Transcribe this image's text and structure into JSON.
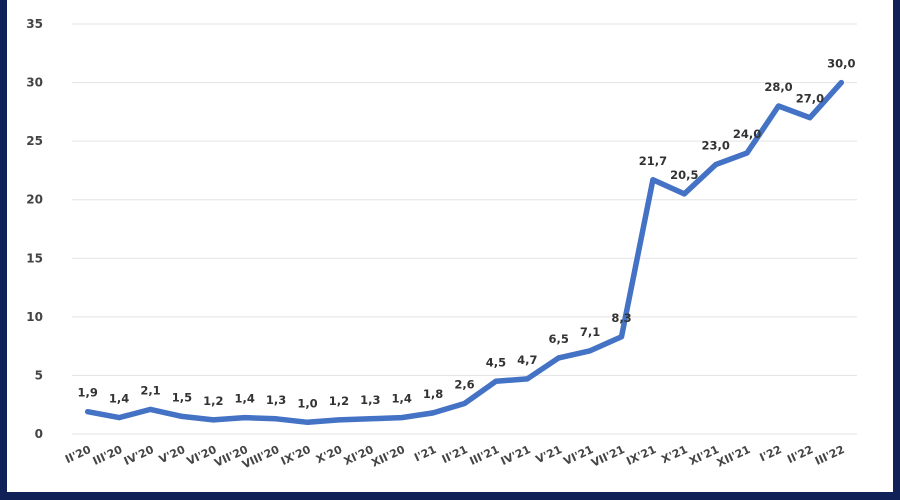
{
  "chart_data": {
    "type": "line",
    "title": "",
    "xlabel": "",
    "ylabel": "",
    "ylim": [
      0,
      35
    ],
    "y_ticks": [
      "0",
      "5",
      "10",
      "15",
      "20",
      "25",
      "30",
      "35"
    ],
    "grid": true,
    "legend": "none",
    "line_color": "#4472c4",
    "categories": [
      "II'20",
      "III'20",
      "IV'20",
      "V'20",
      "VI'20",
      "VII'20",
      "VIII'20",
      "IX'20",
      "X'20",
      "XI'20",
      "XII'20",
      "I'21",
      "II'21",
      "III'21",
      "IV'21",
      "V'21",
      "VI'21",
      "VII'21",
      "IX'21",
      "X'21",
      "XI'21",
      "XII'21",
      "I'22",
      "II'22",
      "III'22"
    ],
    "values": [
      1.9,
      1.4,
      2.1,
      1.5,
      1.2,
      1.4,
      1.3,
      1.0,
      1.2,
      1.3,
      1.4,
      1.8,
      2.6,
      4.5,
      4.7,
      6.5,
      7.1,
      8.3,
      21.7,
      20.5,
      23.0,
      24.0,
      28.0,
      27.0,
      30.0
    ],
    "value_labels": [
      "1,9",
      "1,4",
      "2,1",
      "1,5",
      "1,2",
      "1,4",
      "1,3",
      "1,0",
      "1,2",
      "1,3",
      "1,4",
      "1,8",
      "2,6",
      "4,5",
      "4,7",
      "6,5",
      "7,1",
      "8,3",
      "21,7",
      "20,5",
      "23,0",
      "24,0",
      "28,0",
      "27,0",
      "30,0"
    ]
  }
}
